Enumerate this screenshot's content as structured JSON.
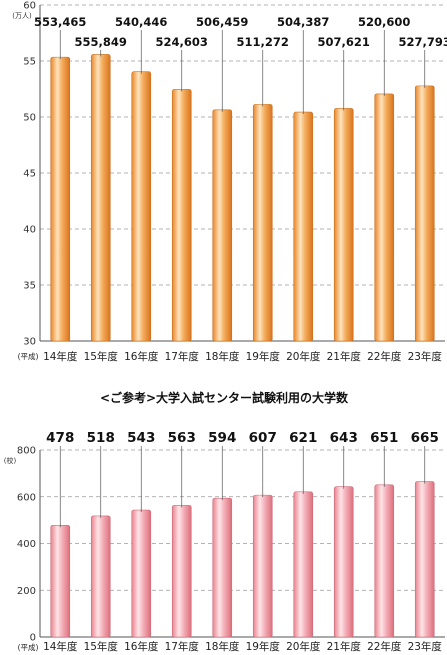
{
  "chart_data": [
    {
      "type": "bar",
      "categories": [
        "14年度",
        "15年度",
        "16年度",
        "17年度",
        "18年度",
        "19年度",
        "20年度",
        "21年度",
        "22年度",
        "23年度"
      ],
      "category_prefix": "(平成)",
      "values": [
        553465,
        555849,
        540446,
        524603,
        506459,
        511272,
        504387,
        507621,
        520600,
        527793
      ],
      "data_labels": [
        "553,465",
        "555,849",
        "540,446",
        "524,603",
        "506,459",
        "511,272",
        "504,387",
        "507,621",
        "520,600",
        "527,793"
      ],
      "ylim": [
        30,
        60
      ],
      "yticks": [
        "30",
        "35",
        "40",
        "45",
        "50",
        "55",
        "60"
      ],
      "yunit": "(万人)",
      "grid": true,
      "bar_color": "#f0a24e"
    },
    {
      "type": "bar",
      "title": "<ご参考>大学入試センター試験利用の大学数",
      "categories": [
        "14年度",
        "15年度",
        "16年度",
        "17年度",
        "18年度",
        "19年度",
        "20年度",
        "21年度",
        "22年度",
        "23年度"
      ],
      "category_prefix": "(平成)",
      "values": [
        478,
        518,
        543,
        563,
        594,
        607,
        621,
        643,
        651,
        665
      ],
      "data_labels": [
        "478",
        "518",
        "543",
        "563",
        "594",
        "607",
        "621",
        "643",
        "651",
        "665"
      ],
      "ylim": [
        0,
        800
      ],
      "yticks": [
        "0",
        "200",
        "400",
        "600",
        "800"
      ],
      "yunit": "(校)",
      "grid": true,
      "bar_color": "#f2aab4"
    }
  ]
}
